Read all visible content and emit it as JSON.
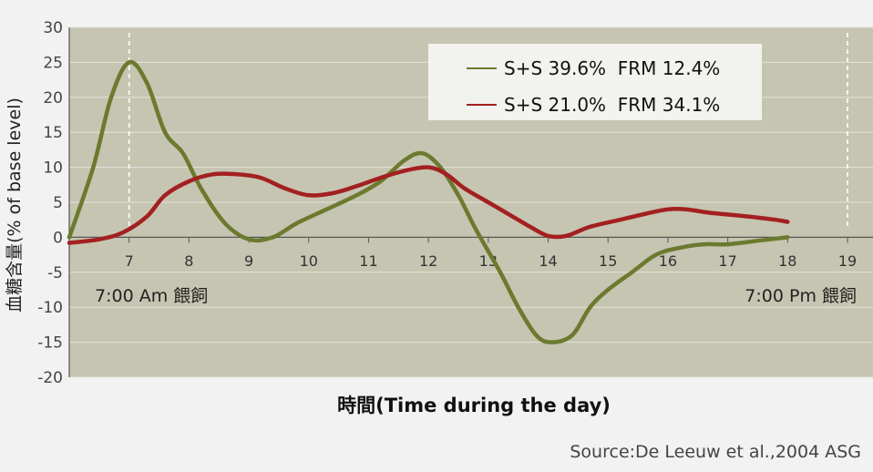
{
  "chart_data": {
    "type": "line",
    "xlabel": "時間(Time during the day)",
    "ylabel": "血糖含量(% of base level)",
    "xlim": [
      6,
      19
    ],
    "ylim": [
      -20,
      30
    ],
    "x_ticks": [
      "7",
      "8",
      "9",
      "10",
      "11",
      "12",
      "13",
      "14",
      "15",
      "16",
      "17",
      "18",
      "19"
    ],
    "y_ticks": [
      "30",
      "25",
      "20",
      "15",
      "10",
      "5",
      "0",
      "-5",
      "-10",
      "-15",
      "-20"
    ],
    "grid": true,
    "legend": "top-right",
    "series": [
      {
        "name": "S+S 39.6%  FRM 12.4%",
        "color": "#6b7a2e",
        "points": [
          [
            6.0,
            0
          ],
          [
            6.4,
            10
          ],
          [
            6.7,
            20
          ],
          [
            7.0,
            25
          ],
          [
            7.3,
            22
          ],
          [
            7.6,
            15
          ],
          [
            7.9,
            12
          ],
          [
            8.2,
            7
          ],
          [
            8.6,
            2
          ],
          [
            9.0,
            -0.3
          ],
          [
            9.4,
            0
          ],
          [
            9.8,
            2
          ],
          [
            10.3,
            4
          ],
          [
            10.8,
            6
          ],
          [
            11.2,
            8
          ],
          [
            11.6,
            11
          ],
          [
            11.9,
            12
          ],
          [
            12.2,
            10
          ],
          [
            12.5,
            6
          ],
          [
            12.8,
            1
          ],
          [
            13.2,
            -5
          ],
          [
            13.5,
            -10
          ],
          [
            13.8,
            -14
          ],
          [
            14.05,
            -15
          ],
          [
            14.4,
            -14
          ],
          [
            14.7,
            -10
          ],
          [
            15.0,
            -7.5
          ],
          [
            15.4,
            -5
          ],
          [
            15.8,
            -2.5
          ],
          [
            16.2,
            -1.5
          ],
          [
            16.6,
            -1
          ],
          [
            17.0,
            -1
          ],
          [
            17.5,
            -0.5
          ],
          [
            18.0,
            0
          ]
        ]
      },
      {
        "name": "S+S 21.0%  FRM 34.1%",
        "color": "#a32020",
        "points": [
          [
            6.0,
            -0.8
          ],
          [
            6.5,
            -0.3
          ],
          [
            6.9,
            0.7
          ],
          [
            7.3,
            3
          ],
          [
            7.6,
            6
          ],
          [
            8.0,
            8
          ],
          [
            8.4,
            9
          ],
          [
            8.8,
            9
          ],
          [
            9.2,
            8.5
          ],
          [
            9.6,
            7
          ],
          [
            10.0,
            6
          ],
          [
            10.4,
            6.3
          ],
          [
            10.8,
            7.3
          ],
          [
            11.2,
            8.5
          ],
          [
            11.6,
            9.5
          ],
          [
            12.0,
            10
          ],
          [
            12.3,
            9
          ],
          [
            12.6,
            7
          ],
          [
            13.0,
            5
          ],
          [
            13.4,
            3
          ],
          [
            13.7,
            1.5
          ],
          [
            14.0,
            0.2
          ],
          [
            14.3,
            0.2
          ],
          [
            14.7,
            1.5
          ],
          [
            15.2,
            2.5
          ],
          [
            15.7,
            3.5
          ],
          [
            16.0,
            4
          ],
          [
            16.3,
            4
          ],
          [
            16.7,
            3.5
          ],
          [
            17.3,
            3
          ],
          [
            17.8,
            2.5
          ],
          [
            18.0,
            2.2
          ]
        ]
      }
    ],
    "annotations": [
      {
        "text": "7:00 Am 餵飼",
        "x_line": 7
      },
      {
        "text": "7:00 Pm 餵飼",
        "x_line": 19
      }
    ],
    "source": "Source:De Leeuw et al.,2004 ASG"
  },
  "colors": {
    "page_background": "#f2f2f2",
    "plot_background": "#c6c5b1",
    "grid": "#e4e3d8",
    "legend_background": "#f2f2ee"
  }
}
